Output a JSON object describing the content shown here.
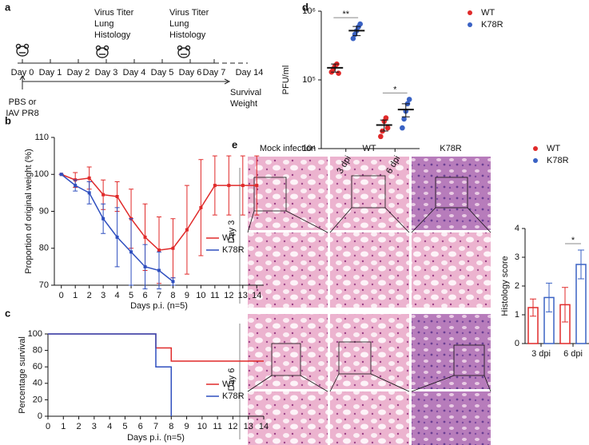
{
  "timeline": {
    "panel": "a",
    "days": [
      "Day 0",
      "Day 1",
      "Day 2",
      "Day 3",
      "Day 4",
      "Day 5",
      "Day 6",
      "Day 7",
      "Day 14"
    ],
    "events": [
      [
        "Virus Titer",
        "Lung",
        "Histology"
      ],
      [
        "Virus Titer",
        "Lung",
        "Histology"
      ]
    ],
    "treatment": [
      "PBS or",
      "IAV PR8"
    ],
    "outcomes": [
      "Survival",
      "Weight"
    ]
  },
  "histology": {
    "panel": "e",
    "columns": [
      "Mock infection",
      "WT",
      "K78R"
    ],
    "rows": [
      "Day 3",
      "Day 6"
    ]
  },
  "chart_data": [
    {
      "type": "line",
      "panel": "b",
      "xlabel": "Days p.i. (n=5)",
      "ylabel": "Proportion of original weight (%)",
      "x": [
        0,
        1,
        2,
        3,
        4,
        5,
        6,
        7,
        8,
        9,
        10,
        11,
        12,
        13,
        14
      ],
      "xlim": [
        -0.5,
        14.5
      ],
      "xticks": [
        0,
        1,
        2,
        3,
        4,
        5,
        6,
        7,
        8,
        9,
        10,
        11,
        12,
        13,
        14
      ],
      "ylim": [
        70,
        110
      ],
      "yticks": [
        70,
        80,
        90,
        100,
        110
      ],
      "legend": "lower right",
      "series": [
        {
          "name": "WT",
          "color": "#e02a2a",
          "values": [
            100,
            98.5,
            99,
            94.5,
            94,
            88,
            83,
            79.5,
            80,
            85,
            91,
            97,
            97,
            97,
            97
          ],
          "errors": [
            0,
            2,
            3,
            4,
            4,
            8,
            9,
            9,
            8,
            12,
            13,
            8,
            8,
            8,
            8
          ]
        },
        {
          "name": "K78R",
          "color": "#2f4fbf",
          "values": [
            100,
            97,
            95,
            88,
            83,
            79,
            75,
            74,
            71,
            null,
            null,
            null,
            null,
            null,
            null
          ],
          "errors": [
            0,
            1.5,
            3,
            4,
            8,
            9,
            6,
            5,
            1,
            null,
            null,
            null,
            null,
            null,
            null
          ]
        }
      ]
    },
    {
      "type": "step",
      "panel": "c",
      "xlabel": "Days p.i. (n=5)",
      "ylabel": "Percentage survival",
      "xlim": [
        0,
        14
      ],
      "xticks": [
        0,
        1,
        2,
        3,
        4,
        5,
        6,
        7,
        8,
        9,
        10,
        11,
        12,
        13,
        14
      ],
      "ylim": [
        0,
        100
      ],
      "yticks": [
        0,
        20,
        40,
        60,
        80,
        100
      ],
      "legend": "center right",
      "series": [
        {
          "name": "WT",
          "color": "#e02a2a",
          "x": [
            0,
            7,
            8,
            14
          ],
          "values": [
            100,
            83,
            67,
            67
          ]
        },
        {
          "name": "K78R",
          "color": "#2f4fbf",
          "x": [
            0,
            7,
            8
          ],
          "values": [
            100,
            60,
            0
          ]
        }
      ]
    },
    {
      "type": "dot",
      "panel": "d",
      "ylabel": "PFU/ml",
      "categories": [
        "3 dpi",
        "6 dpi"
      ],
      "log_scale": true,
      "ylim": [
        10000,
        1000000
      ],
      "yticks": [
        {
          "value": 10000,
          "label": "10⁴"
        },
        {
          "value": 100000,
          "label": "10⁵"
        },
        {
          "value": 1000000,
          "label": "10⁶"
        }
      ],
      "legend": "upper right",
      "annotations": [
        {
          "text": "**",
          "category": 0
        },
        {
          "text": "*",
          "category": 1
        }
      ],
      "series": [
        {
          "name": "WT",
          "color": "#e02a2a",
          "values": [
            [
              130000,
              145000,
              160000,
              170000,
              125000
            ],
            [
              15000,
              18000,
              25000,
              28000,
              20000
            ]
          ],
          "means": [
            150000,
            22000
          ],
          "errors": [
            20000,
            4000
          ]
        },
        {
          "name": "K78R",
          "color": "#3a62c4",
          "values": [
            [
              400000,
              460000,
              520000,
              590000,
              650000
            ],
            [
              20000,
              27000,
              35000,
              45000,
              52000
            ]
          ],
          "means": [
            520000,
            37000
          ],
          "errors": [
            80000,
            8000
          ]
        }
      ]
    },
    {
      "type": "bar",
      "ylabel": "Histology score",
      "categories": [
        "3 dpi",
        "6 dpi"
      ],
      "ylim": [
        0,
        4
      ],
      "yticks": [
        0,
        1,
        2,
        3,
        4
      ],
      "legend": "upper left",
      "annotations": [
        {
          "text": "*",
          "category": 1
        }
      ],
      "series": [
        {
          "name": "WT",
          "color": "#e02a2a",
          "values": [
            1.25,
            1.35
          ],
          "errors": [
            0.3,
            0.6
          ]
        },
        {
          "name": "K78R",
          "color": "#3a62c4",
          "values": [
            1.6,
            2.75
          ],
          "errors": [
            0.5,
            0.5
          ]
        }
      ]
    }
  ]
}
